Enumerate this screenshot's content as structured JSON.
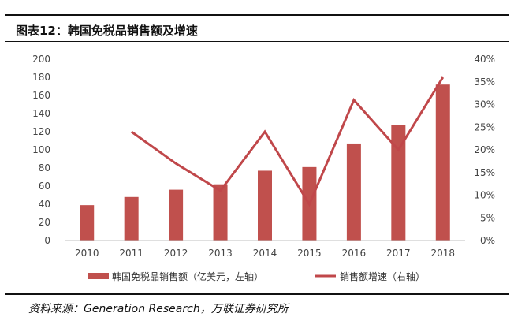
{
  "header": {
    "title": "图表12：韩国免税品销售额及增速"
  },
  "footer": {
    "source": "资料来源：Generation Research，万联证券研究所"
  },
  "colors": {
    "bar": "#c0504d",
    "line": "#c0474a",
    "axis": "#bfbfbf"
  },
  "chart_data": {
    "type": "bar",
    "categories": [
      "2010",
      "2011",
      "2012",
      "2013",
      "2014",
      "2015",
      "2016",
      "2017",
      "2018"
    ],
    "series": [
      {
        "name": "韩国免税品销售额（亿美元，左轴）",
        "type": "bar",
        "axis": "left",
        "values": [
          39,
          48,
          56,
          62,
          77,
          81,
          107,
          127,
          172
        ]
      },
      {
        "name": "销售额增速（右轴）",
        "type": "line",
        "axis": "right",
        "values": [
          null,
          24,
          17,
          11,
          24,
          8,
          31,
          20,
          36
        ]
      }
    ],
    "y_left": {
      "ylim": [
        0,
        200
      ],
      "ticks": [
        "0",
        "20",
        "40",
        "60",
        "80",
        "100",
        "120",
        "140",
        "160",
        "180",
        "200"
      ]
    },
    "y_right": {
      "ylim": [
        0,
        40
      ],
      "ticks": [
        "0%",
        "5%",
        "10%",
        "15%",
        "20%",
        "25%",
        "30%",
        "35%",
        "40%"
      ]
    },
    "legend_position": "bottom",
    "grid": false
  }
}
